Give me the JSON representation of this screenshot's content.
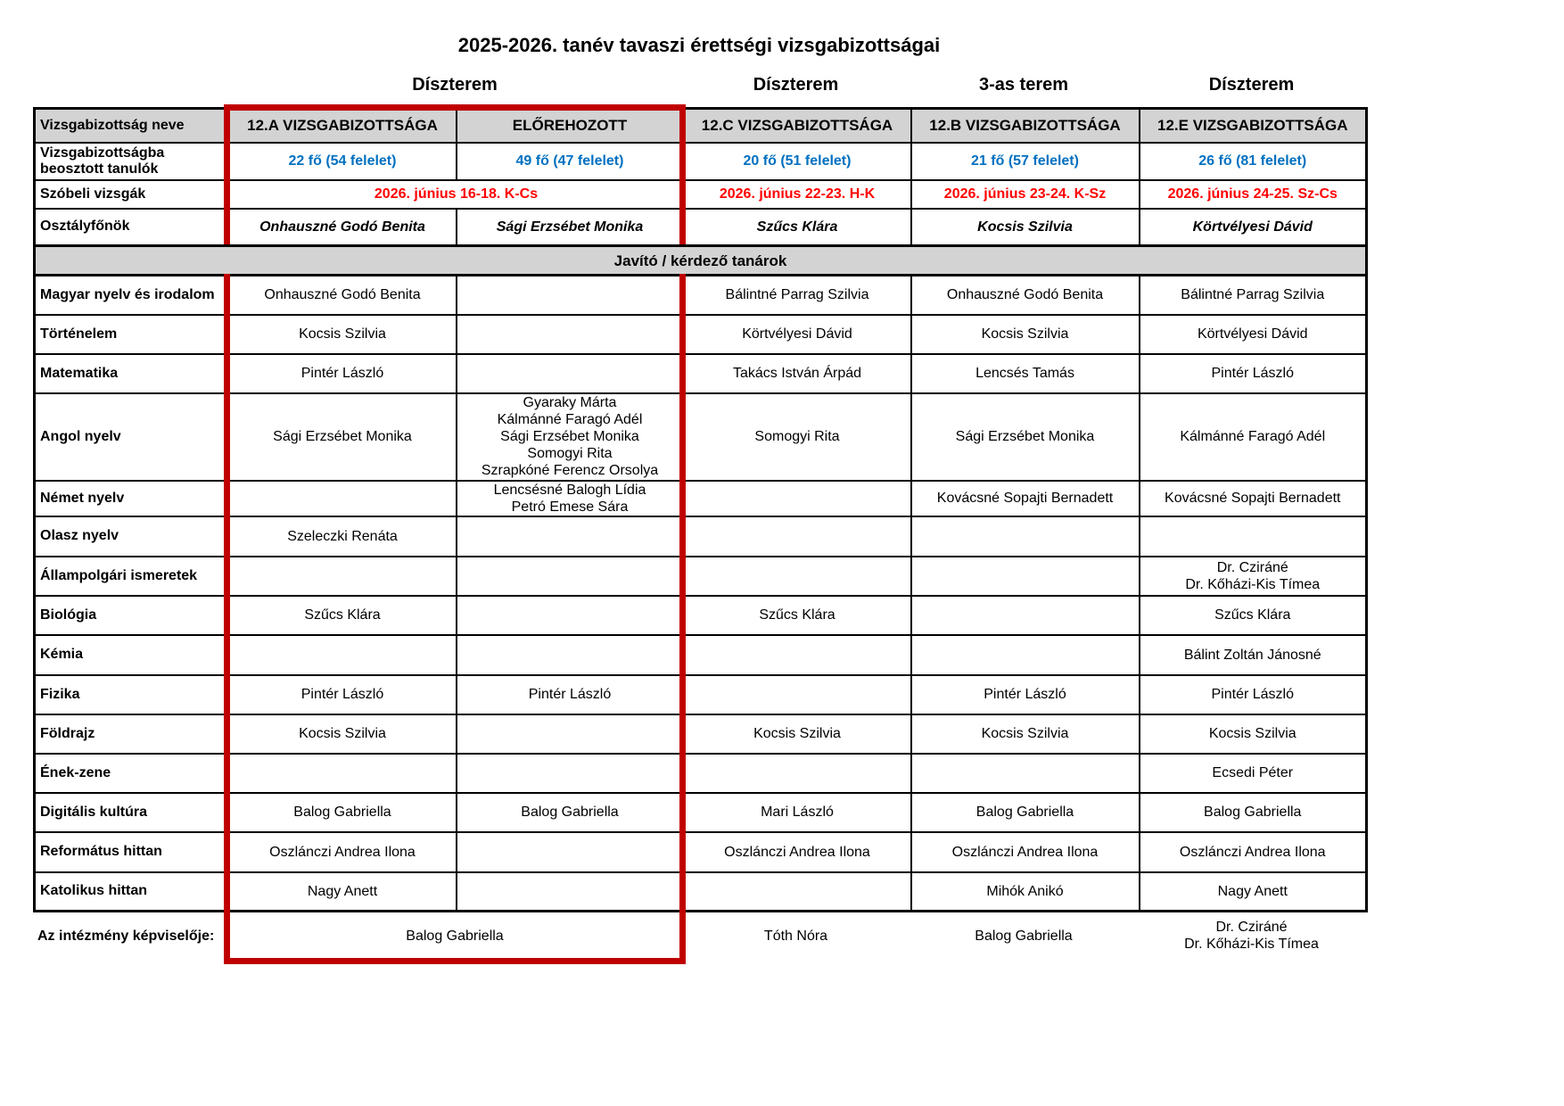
{
  "title": "2025-2026. tanév tavaszi érettségi vizsgabizottságai",
  "rooms": [
    "Díszterem",
    "Díszterem",
    "3-as terem",
    "Díszterem"
  ],
  "table": {
    "header": {
      "label": "Vizsgabizottság neve",
      "committees": [
        "12.A VIZSGABIZOTTSÁGA",
        "ELŐREHOZOTT",
        "12.C VIZSGABIZOTTSÁGA",
        "12.B VIZSGABIZOTTSÁGA",
        "12.E VIZSGABIZOTTSÁGA"
      ]
    },
    "students": {
      "label": "Vizsgabizottságba beosztott tanulók",
      "values": [
        "22 fő (54 felelet)",
        "49 fő (47 felelet)",
        "20 fő (51 felelet)",
        "21 fő (57 felelet)",
        "26 fő (81 felelet)"
      ]
    },
    "oral_exams": {
      "label": "Szóbeli vizsgák",
      "merged_ab": "2026. június 16-18. K-Cs",
      "values": [
        "2026. június 22-23. H-K",
        "2026. június 23-24. K-Sz",
        "2026. június 24-25. Sz-Cs"
      ]
    },
    "class_teachers": {
      "label": "Osztályfőnök",
      "values": [
        "Onhauszné Godó Benita",
        "Sági Erzsébet Monika",
        "Szűcs Klára",
        "Kocsis Szilvia",
        "Körtvélyesi Dávid"
      ]
    },
    "section_banner": "Javító / kérdező tanárok",
    "subjects": [
      {
        "label": "Magyar nyelv és irodalom",
        "cells": [
          [
            "Onhauszné Godó Benita"
          ],
          [],
          [
            "Bálintné Parrag Szilvia"
          ],
          [
            "Onhauszné Godó Benita"
          ],
          [
            "Bálintné Parrag Szilvia"
          ]
        ]
      },
      {
        "label": "Történelem",
        "cells": [
          [
            "Kocsis Szilvia"
          ],
          [],
          [
            "Körtvélyesi Dávid"
          ],
          [
            "Kocsis Szilvia"
          ],
          [
            "Körtvélyesi Dávid"
          ]
        ]
      },
      {
        "label": "Matematika",
        "cells": [
          [
            "Pintér László"
          ],
          [],
          [
            "Takács István Árpád"
          ],
          [
            "Lencsés Tamás"
          ],
          [
            "Pintér László"
          ]
        ]
      },
      {
        "label": "Angol nyelv",
        "cells": [
          [
            "Sági Erzsébet Monika"
          ],
          [
            "Gyaraky Márta",
            "Kálmánné Faragó Adél",
            "Sági Erzsébet Monika",
            "Somogyi Rita",
            "Szrapkóné Ferencz Orsolya"
          ],
          [
            "Somogyi Rita"
          ],
          [
            "Sági Erzsébet Monika"
          ],
          [
            "Kálmánné Faragó Adél"
          ]
        ]
      },
      {
        "label": "Német nyelv",
        "cells": [
          [],
          [
            "Lencsésné Balogh Lídia",
            "Petró Emese Sára"
          ],
          [],
          [
            "Kovácsné Sopajti Bernadett"
          ],
          [
            "Kovácsné Sopajti Bernadett"
          ]
        ]
      },
      {
        "label": "Olasz nyelv",
        "cells": [
          [
            "Szeleczki Renáta"
          ],
          [],
          [],
          [],
          []
        ]
      },
      {
        "label": "Állampolgári ismeretek",
        "cells": [
          [],
          [],
          [],
          [],
          [
            "Dr. Cziráné",
            "Dr. Kőházi-Kis Tímea"
          ]
        ]
      },
      {
        "label": "Biológia",
        "cells": [
          [
            "Szűcs Klára"
          ],
          [],
          [
            "Szűcs Klára"
          ],
          [],
          [
            "Szűcs Klára"
          ]
        ]
      },
      {
        "label": "Kémia",
        "cells": [
          [],
          [],
          [],
          [],
          [
            "Bálint Zoltán Jánosné"
          ]
        ]
      },
      {
        "label": "Fizika",
        "cells": [
          [
            "Pintér László"
          ],
          [
            "Pintér László"
          ],
          [],
          [
            "Pintér László"
          ],
          [
            "Pintér László"
          ]
        ]
      },
      {
        "label": "Földrajz",
        "cells": [
          [
            "Kocsis Szilvia"
          ],
          [],
          [
            "Kocsis Szilvia"
          ],
          [
            "Kocsis Szilvia"
          ],
          [
            "Kocsis Szilvia"
          ]
        ]
      },
      {
        "label": "Ének-zene",
        "cells": [
          [],
          [],
          [],
          [],
          [
            "Ecsedi Péter"
          ]
        ]
      },
      {
        "label": "Digitális kultúra",
        "cells": [
          [
            "Balog Gabriella"
          ],
          [
            "Balog Gabriella"
          ],
          [
            "Mari László"
          ],
          [
            "Balog Gabriella"
          ],
          [
            "Balog Gabriella"
          ]
        ]
      },
      {
        "label": "Református hittan",
        "cells": [
          [
            "Oszlánczi Andrea Ilona"
          ],
          [],
          [
            "Oszlánczi Andrea Ilona"
          ],
          [
            "Oszlánczi Andrea Ilona"
          ],
          [
            "Oszlánczi Andrea Ilona"
          ]
        ]
      },
      {
        "label": "Katolikus hittan",
        "cells": [
          [
            "Nagy Anett"
          ],
          [],
          [],
          [
            "Mihók Anikó"
          ],
          [
            "Nagy Anett"
          ]
        ]
      }
    ]
  },
  "representative": {
    "label": "Az intézmény képviselője:",
    "merged_ab": "Balog Gabriella",
    "values": [
      [
        "Tóth Nóra"
      ],
      [
        "Balog Gabriella"
      ],
      [
        "Dr. Cziráné",
        "Dr. Kőházi-Kis Tímea"
      ]
    ]
  },
  "colors": {
    "header_gray": "#d3d3d3",
    "students_text": "#0070c0",
    "dates_text": "#ff0000",
    "highlight_box": "#c00000"
  }
}
